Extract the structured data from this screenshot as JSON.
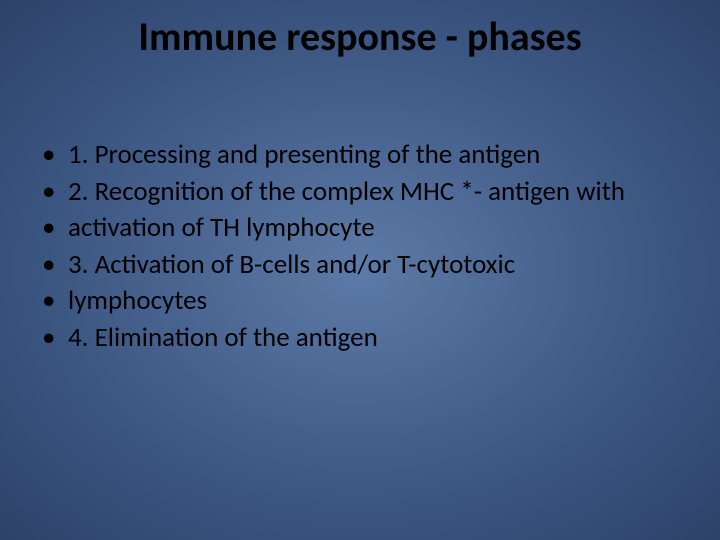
{
  "slide": {
    "title": "Immune response - phases",
    "bullets": [
      "1. Processing and presenting of the antigen",
      "2. Recognition of the complex MHC *- antigen with",
      "activation of TH lymphocyte",
      "3. Activation of B-cells and/or T-cytotoxic",
      "lymphocytes",
      "4. Elimination of the antigen"
    ],
    "background_gradient": {
      "center": "#5d7ba8",
      "mid1": "#4a6591",
      "mid2": "#3a5480",
      "edge": "#2d4268"
    },
    "title_color": "#000000",
    "text_color": "#000000",
    "title_fontsize": 40,
    "body_fontsize": 27,
    "bullet_char": "•"
  }
}
